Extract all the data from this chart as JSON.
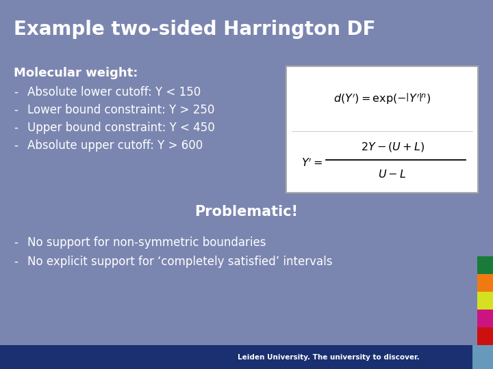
{
  "title": "Example two-sided Harrington DF",
  "bg_color": "#7b86b0",
  "footer_bg": "#1a3070",
  "footer_text": "Leiden University. The university to discover.",
  "title_color": "#ffffff",
  "text_color": "#ffffff",
  "mol_weight_label": "Molecular weight:",
  "bullets": [
    "Absolute lower cutoff: Y < 150",
    "Lower bound constraint: Y > 250",
    "Upper bound constraint: Y < 450",
    "Absolute upper cutoff: Y > 600"
  ],
  "problematic_text": "Problematic!",
  "bottom_bullets": [
    "No support for non-symmetric boundaries",
    "No explicit support for ‘completely satisfied’ intervals"
  ],
  "sidebar_colors": [
    "#1a7a3a",
    "#f07a10",
    "#d4e020",
    "#cc1480",
    "#cc1010"
  ],
  "formula_box_bg": "#ffffff",
  "formula_box_border": "#aaaaaa",
  "footer_accent": "#6699bb"
}
